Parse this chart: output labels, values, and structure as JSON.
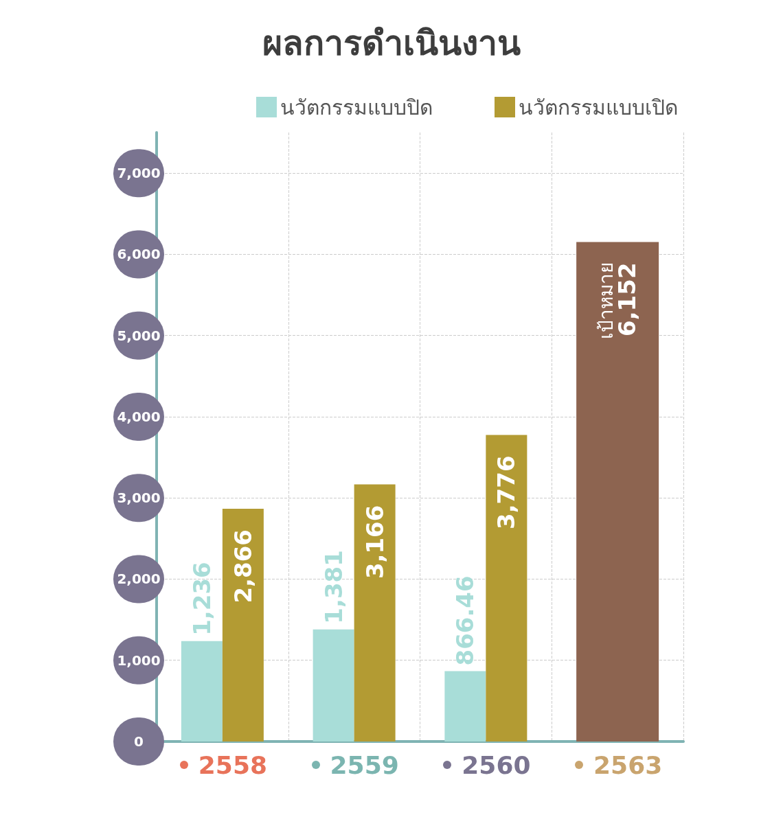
{
  "chart_data": {
    "type": "bar",
    "title": "ผลการดำเนินงาน",
    "categories": [
      "2558",
      "2559",
      "2560",
      "2563"
    ],
    "series": [
      {
        "name": "นวัตกรรมแบบปิด",
        "color": "#a8ddd8",
        "values": [
          1236,
          1381,
          866.46,
          null
        ],
        "value_labels": [
          "1,236",
          "1,381",
          "866.46",
          null
        ]
      },
      {
        "name": "นวัตกรรมแบบเปิด",
        "color": "#b39b33",
        "values": [
          2866,
          3166,
          3776,
          null
        ],
        "value_labels": [
          "2,866",
          "3,166",
          "3,776",
          null
        ]
      },
      {
        "name": "เป้าหมาย",
        "color": "#8d6450",
        "values": [
          null,
          null,
          null,
          6152
        ],
        "value_labels": [
          null,
          null,
          null,
          "6,152"
        ]
      }
    ],
    "ylim": [
      0,
      7500
    ],
    "yticks": [
      0,
      {
        "value": 1000,
        "label": "1,000"
      },
      {
        "value": 2000,
        "label": "2,000"
      },
      {
        "value": 3000,
        "label": "3,000"
      },
      {
        "value": 4000,
        "label": "4,000"
      },
      {
        "value": 5000,
        "label": "5,000"
      },
      {
        "value": 6000,
        "label": "6,000"
      },
      {
        "value": 7000,
        "label": "7,000"
      }
    ],
    "grid": true,
    "legend": "top right"
  }
}
